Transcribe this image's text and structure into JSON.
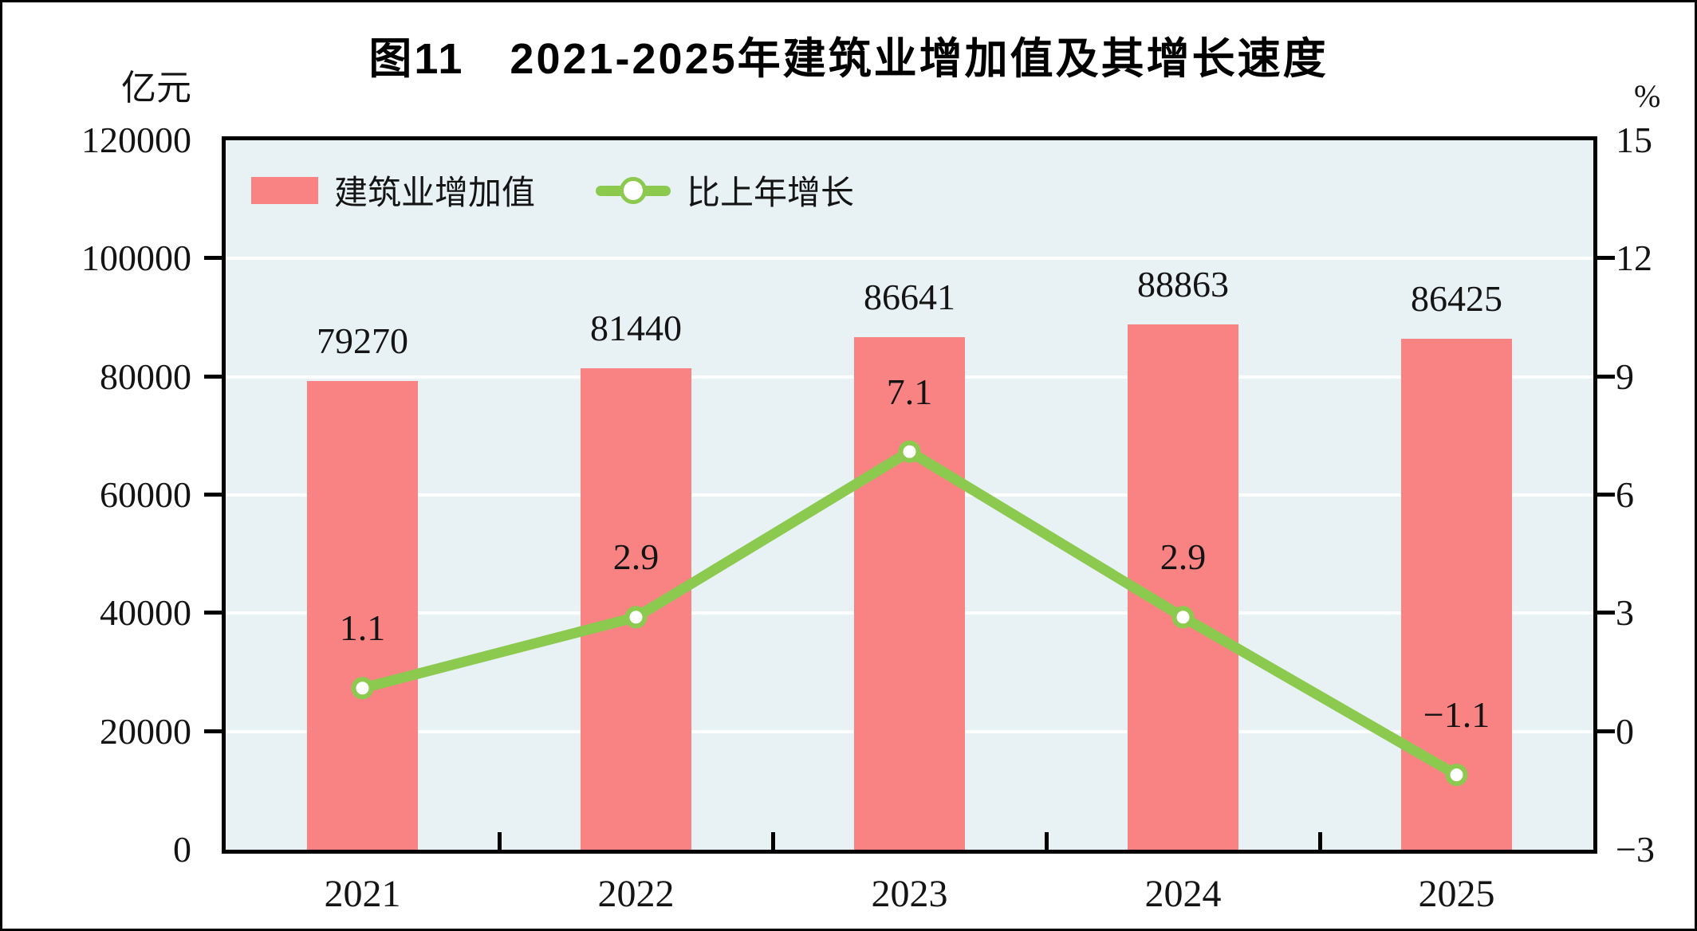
{
  "chart_data": {
    "type": "bar+line",
    "title": "图11　2021-2025年建筑业增加值及其增长速度",
    "categories": [
      "2021",
      "2022",
      "2023",
      "2024",
      "2025"
    ],
    "series": [
      {
        "name": "建筑业增加值",
        "type": "bar",
        "axis": "left",
        "values": [
          79270,
          81440,
          86641,
          88863,
          86425
        ],
        "value_labels": [
          "79270",
          "81440",
          "86641",
          "88863",
          "86425"
        ]
      },
      {
        "name": "比上年增长",
        "type": "line",
        "axis": "right",
        "values": [
          1.1,
          2.9,
          7.1,
          2.9,
          -1.1
        ],
        "value_labels": [
          "1.1",
          "2.9",
          "7.1",
          "2.9",
          "−1.1"
        ]
      }
    ],
    "left_axis": {
      "unit": "亿元",
      "min": 0,
      "max": 120000,
      "step": 20000,
      "tick_labels": [
        "120000",
        "100000",
        "80000",
        "60000",
        "40000",
        "20000",
        "0"
      ]
    },
    "right_axis": {
      "unit": "%",
      "min": -3,
      "max": 15,
      "step": 3,
      "tick_labels": [
        "15",
        "12",
        "9",
        "6",
        "3",
        "0",
        "−3"
      ]
    },
    "legend_position": "top-left-inside",
    "grid": "horizontal-white-gridlines",
    "plot_background": "#e8f1f4",
    "colors": {
      "bar": "#f98383",
      "line": "#8cc94f",
      "marker_fill": "#ffffff",
      "text": "#141414",
      "axis": "#000000"
    }
  }
}
